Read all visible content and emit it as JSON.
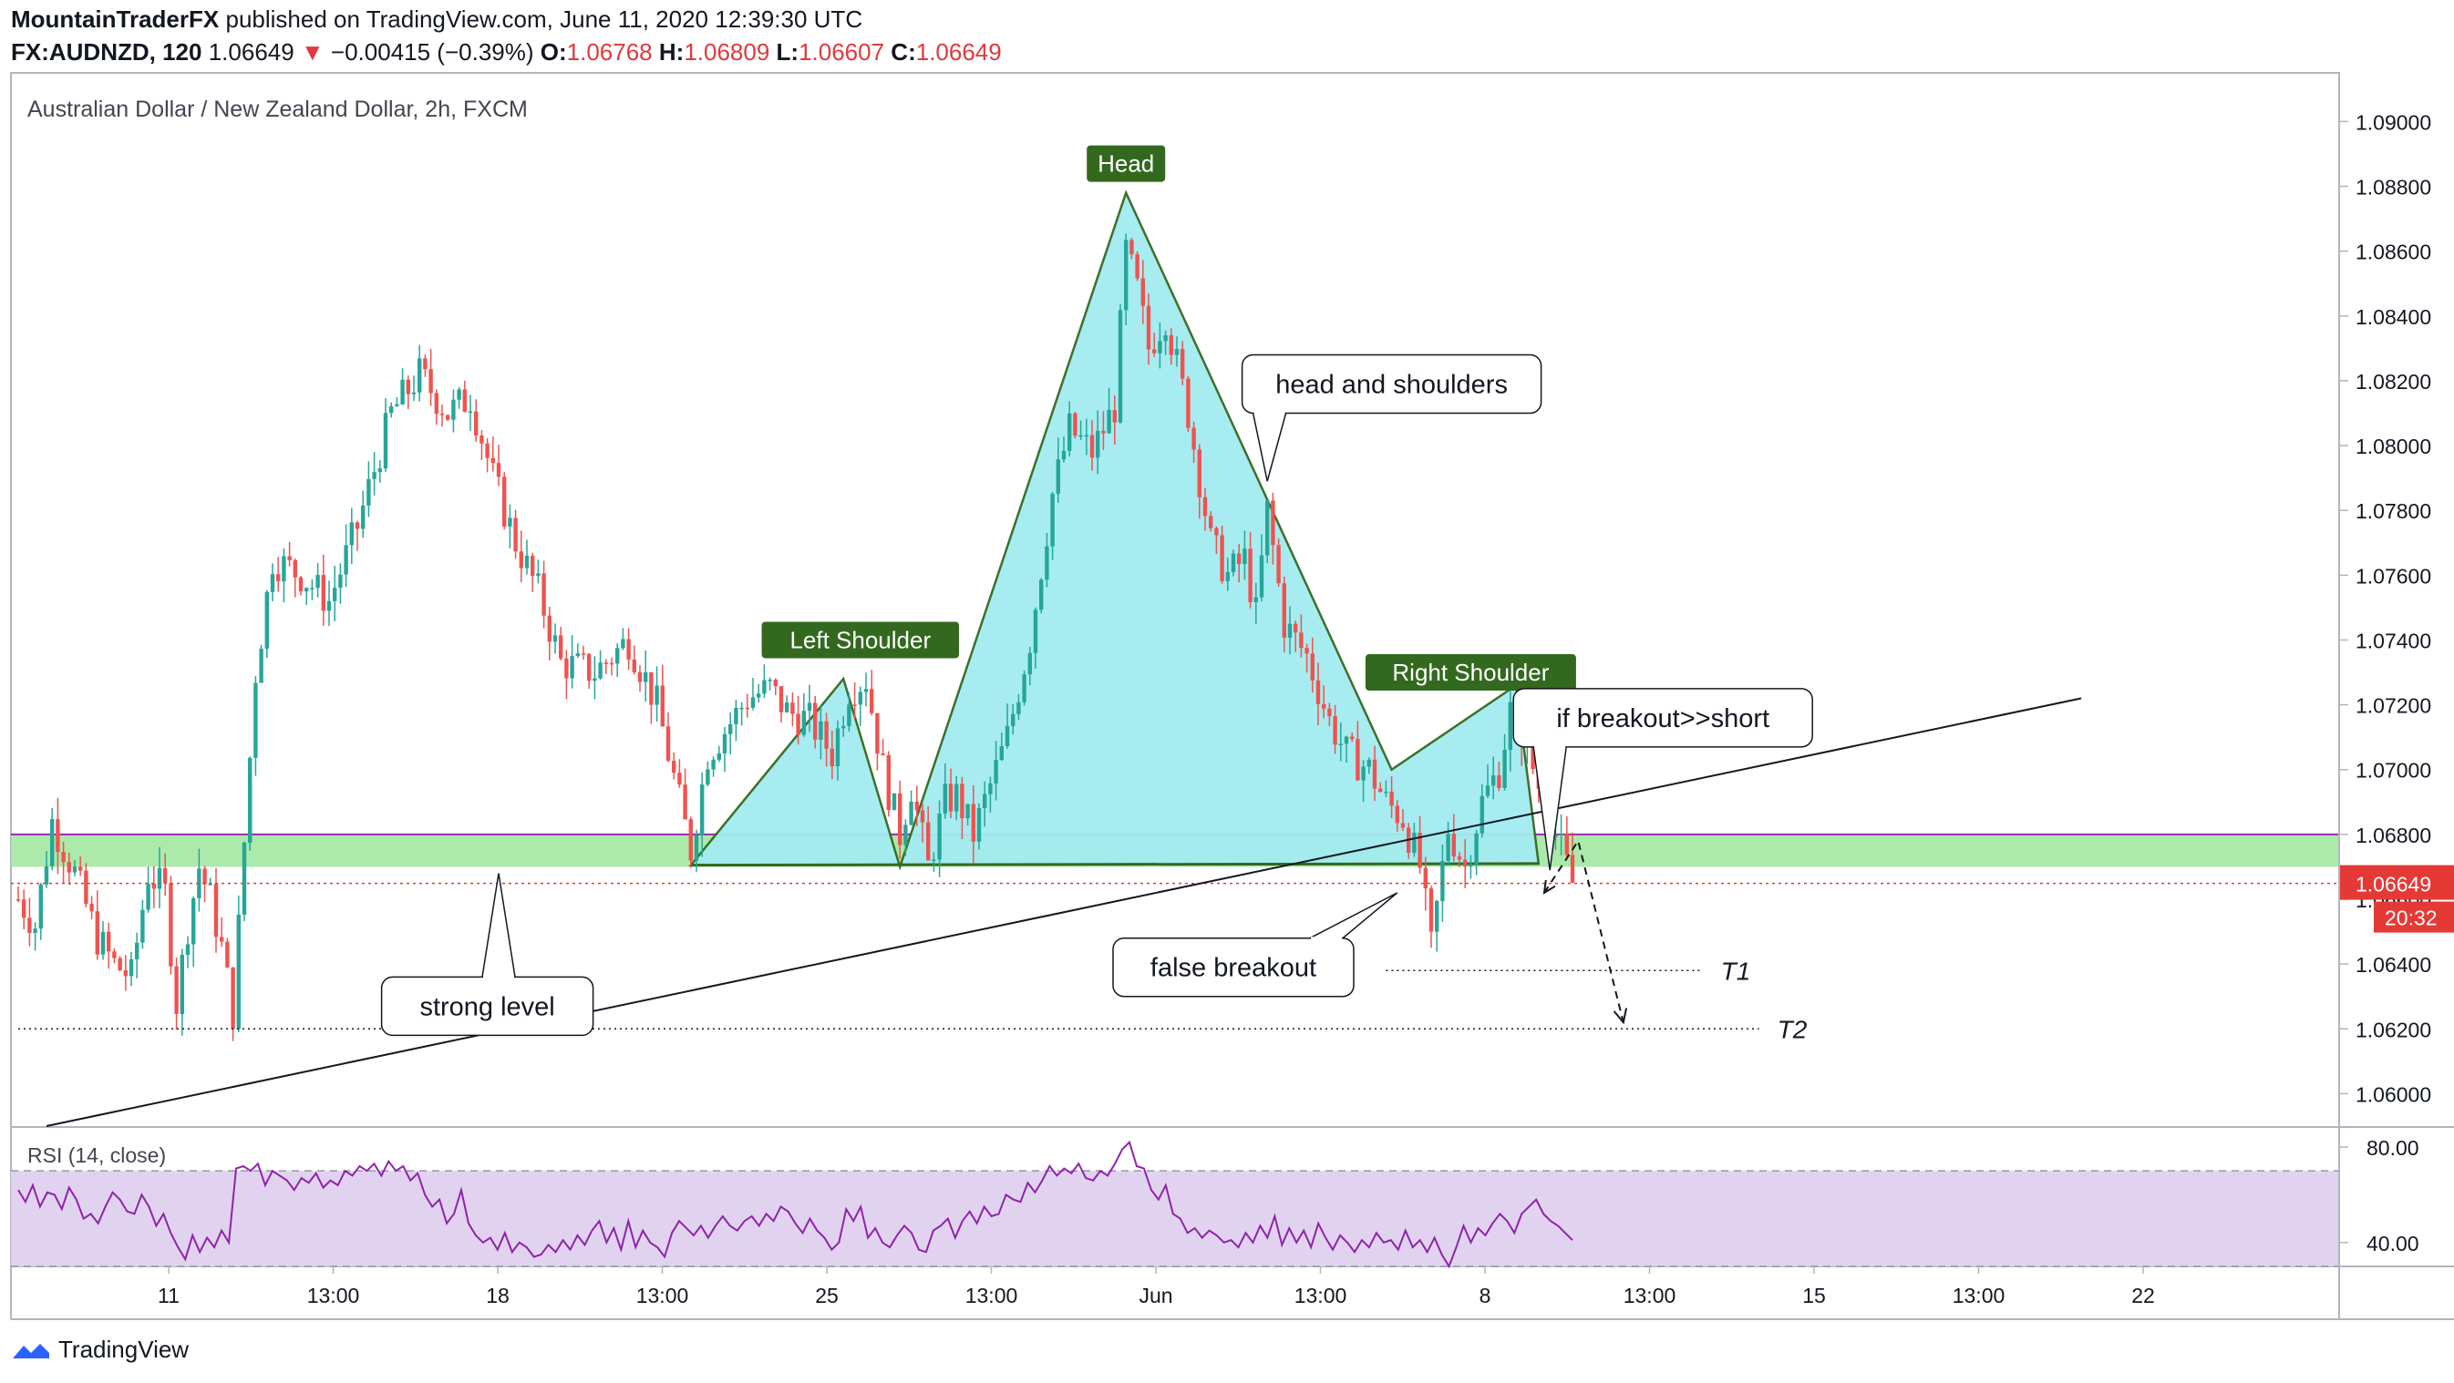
{
  "header": {
    "author": "MountainTraderFX",
    "published": "published on TradingView.com, June 11, 2020 12:39:30 UTC",
    "symbol": "FX:AUDNZD, 120",
    "last": "1.06649",
    "change": "−0.00415 (−0.39%)",
    "o_label": "O:",
    "o_value": "1.06768",
    "h_label": "H:",
    "h_value": "1.06809",
    "l_label": "L:",
    "l_value": "1.06607",
    "c_label": "C:",
    "c_value": "1.06649"
  },
  "footer": {
    "logo_text": "TradingView"
  },
  "colors": {
    "up": "#26a69a",
    "down": "#ef5350",
    "pattern_fill": "#a3ecf0",
    "pattern_line": "#33691e",
    "zone_fill": "#9ce69b",
    "label_bg": "#33691e",
    "rsi_fill": "#e1d3f0",
    "rsi_line": "#8e24aa",
    "price_tag": "#e53935"
  },
  "chart_data": [
    {
      "type": "candlestick",
      "title": "Australian Dollar / New Zealand Dollar, 2h, FXCM",
      "ylim": [
        1.059,
        1.0915
      ],
      "yticks": [
        "1.09000",
        "1.08800",
        "1.08600",
        "1.08400",
        "1.08200",
        "1.08000",
        "1.07800",
        "1.07600",
        "1.07400",
        "1.07200",
        "1.07000",
        "1.06800",
        "1.06600",
        "1.06400",
        "1.06200",
        "1.06000"
      ],
      "xticks": [
        "11",
        "13:00",
        "18",
        "13:00",
        "25",
        "13:00",
        "Jun",
        "13:00",
        "8",
        "13:00",
        "15",
        "13:00",
        "22"
      ],
      "current_price": "1.06649",
      "countdown": "20:32",
      "price_path": [
        [
          0,
          1.066
        ],
        [
          3,
          1.0652
        ],
        [
          6,
          1.0684
        ],
        [
          10,
          1.0668
        ],
        [
          14,
          1.0648
        ],
        [
          17,
          1.064
        ],
        [
          20,
          1.0636
        ],
        [
          23,
          1.0668
        ],
        [
          26,
          1.0662
        ],
        [
          28,
          1.0628
        ],
        [
          30,
          1.0652
        ],
        [
          32,
          1.067
        ],
        [
          34,
          1.066
        ],
        [
          36,
          1.0645
        ],
        [
          38,
          1.0625
        ],
        [
          42,
          1.073
        ],
        [
          45,
          1.0765
        ],
        [
          50,
          1.076
        ],
        [
          55,
          1.0752
        ],
        [
          60,
          1.0775
        ],
        [
          66,
          1.081
        ],
        [
          71,
          1.0822
        ],
        [
          76,
          1.081
        ],
        [
          80,
          1.0815
        ],
        [
          84,
          1.079
        ],
        [
          88,
          1.077
        ],
        [
          92,
          1.0755
        ],
        [
          96,
          1.0733
        ],
        [
          102,
          1.073
        ],
        [
          108,
          1.074
        ],
        [
          113,
          1.072
        ],
        [
          117,
          1.069
        ],
        [
          119,
          1.0675
        ],
        [
          122,
          1.0705
        ],
        [
          125,
          1.0712
        ],
        [
          129,
          1.0722
        ],
        [
          133,
          1.0725
        ],
        [
          136,
          1.0718
        ],
        [
          140,
          1.0715
        ],
        [
          144,
          1.0705
        ],
        [
          147,
          1.0725
        ],
        [
          150,
          1.0728
        ],
        [
          153,
          1.07
        ],
        [
          156,
          1.068
        ],
        [
          158,
          1.0695
        ],
        [
          161,
          1.067
        ],
        [
          164,
          1.069
        ],
        [
          166,
          1.0692
        ],
        [
          169,
          1.068
        ],
        [
          172,
          1.0695
        ],
        [
          175,
          1.071
        ],
        [
          179,
          1.074
        ],
        [
          183,
          1.0785
        ],
        [
          186,
          1.0805
        ],
        [
          190,
          1.0798
        ],
        [
          194,
          1.0812
        ],
        [
          196,
          1.086
        ],
        [
          198,
          1.0848
        ],
        [
          200,
          1.083
        ],
        [
          203,
          1.084
        ],
        [
          207,
          1.081
        ],
        [
          211,
          1.077
        ],
        [
          214,
          1.076
        ],
        [
          217,
          1.0765
        ],
        [
          219,
          1.0748
        ],
        [
          221,
          1.078
        ],
        [
          224,
          1.0745
        ],
        [
          228,
          1.0735
        ],
        [
          232,
          1.0715
        ],
        [
          235,
          1.0705
        ],
        [
          239,
          1.07
        ],
        [
          242,
          1.069
        ],
        [
          245,
          1.0685
        ],
        [
          248,
          1.067
        ],
        [
          250,
          1.0645
        ],
        [
          253,
          1.0682
        ],
        [
          256,
          1.067
        ],
        [
          259,
          1.069
        ],
        [
          262,
          1.07
        ],
        [
          264,
          1.0718
        ],
        [
          266,
          1.0712
        ],
        [
          269,
          1.0695
        ],
        [
          272,
          1.068
        ],
        [
          275,
          1.0665
        ]
      ],
      "pattern": {
        "kind": "head and shoulders",
        "points": [
          [
            119,
            1.06705
          ],
          [
            146,
            1.0728
          ],
          [
            156,
            1.067
          ],
          [
            196,
            1.0878
          ],
          [
            243,
            1.07
          ],
          [
            265,
            1.0726
          ],
          [
            269,
            1.0671
          ]
        ]
      },
      "support_zone": [
        1.067,
        1.068
      ],
      "red_dotted_level": 1.06649,
      "trendline": [
        [
          5,
          1.059
        ],
        [
          365,
          1.0722
        ]
      ],
      "targets": [
        {
          "label": "T1",
          "price": 1.0638,
          "from": 242,
          "to": 298
        },
        {
          "label": "T2",
          "price": 1.062,
          "from": 0,
          "to": 308
        }
      ],
      "projection_arrow": [
        [
          270,
          1.0662
        ],
        [
          276,
          1.0678
        ],
        [
          284,
          1.0622
        ]
      ],
      "annotations": [
        {
          "text": "Head",
          "style": "label",
          "at": [
            196,
            1.0887
          ]
        },
        {
          "text": "Left Shoulder",
          "style": "label",
          "at": [
            149,
            1.074
          ]
        },
        {
          "text": "Right Shoulder",
          "style": "label",
          "at": [
            257,
            1.073
          ]
        },
        {
          "text": "head and shoulders",
          "style": "callout",
          "at": [
            243,
            1.0819
          ],
          "pointer": [
            221,
            1.0789
          ]
        },
        {
          "text": "if breakout>>short",
          "style": "callout",
          "at": [
            291,
            1.0716
          ],
          "pointer": [
            271,
            1.0669
          ]
        },
        {
          "text": "strong level",
          "style": "callout",
          "at": [
            83,
            1.0627
          ],
          "pointer": [
            85,
            1.0668
          ]
        },
        {
          "text": "false breakout",
          "style": "callout",
          "at": [
            215,
            1.0639
          ],
          "pointer": [
            244,
            1.0662
          ]
        }
      ]
    },
    {
      "type": "line",
      "title": "RSI (14, close)",
      "ylim": [
        30,
        88
      ],
      "yticks": [
        "80.00",
        "40.00"
      ],
      "bands": [
        70,
        30
      ],
      "values": [
        62,
        57,
        64,
        55,
        61,
        60,
        54,
        63,
        58,
        50,
        52,
        48,
        55,
        61,
        58,
        53,
        52,
        60,
        55,
        47,
        52,
        44,
        38,
        33,
        43,
        36,
        42,
        38,
        45,
        40,
        71,
        72,
        70,
        73,
        64,
        70,
        68,
        66,
        62,
        67,
        65,
        69,
        63,
        66,
        64,
        70,
        68,
        72,
        70,
        73,
        68,
        74,
        70,
        72,
        66,
        69,
        60,
        55,
        58,
        48,
        52,
        62,
        48,
        43,
        40,
        42,
        37,
        44,
        36,
        40,
        38,
        34,
        35,
        39,
        36,
        41,
        37,
        43,
        39,
        45,
        49,
        40,
        46,
        37,
        49,
        38,
        45,
        40,
        38,
        34,
        44,
        49,
        46,
        43,
        47,
        42,
        47,
        51,
        47,
        45,
        49,
        51,
        47,
        52,
        49,
        55,
        53,
        48,
        44,
        50,
        45,
        42,
        37,
        40,
        54,
        49,
        55,
        42,
        46,
        40,
        38,
        43,
        47,
        44,
        37,
        36,
        45,
        47,
        50,
        42,
        49,
        53,
        48,
        55,
        51,
        52,
        60,
        58,
        57,
        65,
        61,
        66,
        72,
        68,
        71,
        69,
        73,
        67,
        66,
        70,
        68,
        73,
        79,
        82,
        72,
        71,
        62,
        58,
        64,
        52,
        50,
        44,
        46,
        42,
        45,
        43,
        40,
        41,
        38,
        44,
        40,
        47,
        42,
        51,
        39,
        46,
        40,
        45,
        38,
        48,
        42,
        37,
        43,
        40,
        36,
        41,
        38,
        44,
        40,
        41,
        37,
        45,
        38,
        41,
        36,
        42,
        35,
        30,
        38,
        47,
        40,
        46,
        43,
        48,
        52,
        49,
        44,
        52,
        55,
        58,
        52,
        49,
        47,
        44,
        41
      ]
    }
  ]
}
